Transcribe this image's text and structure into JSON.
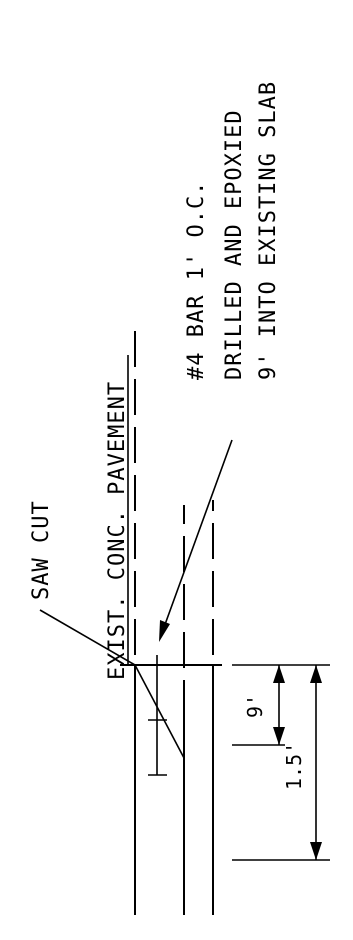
{
  "labels": {
    "saw_cut": "SAW CUT",
    "existing_pavement": "EXIST. CONC. PAVEMENT",
    "bar_line1": "#4 BAR 1' O.C.",
    "bar_line2": "DRILLED AND EPOXIED",
    "bar_line3": "9' INTO EXISTING SLAB"
  },
  "dimensions": {
    "embed_depth": "9'",
    "slab_thickness": "1.5'"
  }
}
